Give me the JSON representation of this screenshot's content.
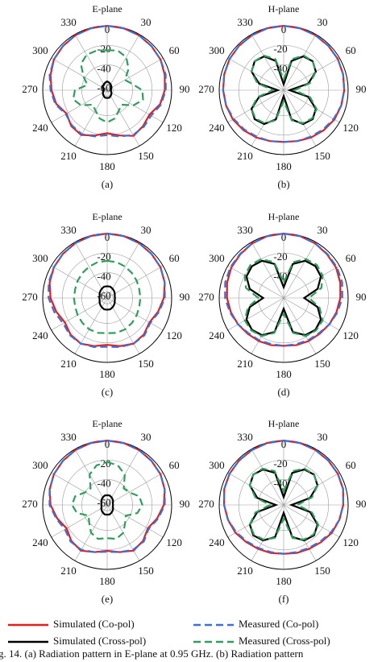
{
  "chart_data": [
    {
      "type": "polar",
      "title": "E-plane",
      "caption": "(a)",
      "theta": [
        0,
        15,
        30,
        45,
        60,
        75,
        90,
        105,
        120,
        135,
        150,
        165,
        180,
        195,
        210,
        225,
        240,
        255,
        270,
        285,
        300,
        315,
        330,
        345
      ],
      "thetaticks": [
        0,
        30,
        60,
        90,
        120,
        150,
        180,
        210,
        240,
        270,
        300,
        330
      ],
      "rlim": [
        -66,
        0
      ],
      "rticks": [
        0,
        -20,
        -40,
        -60
      ],
      "grid": true,
      "series": [
        {
          "name": "Simulated (Co-pol)",
          "color": "#e41e1e",
          "dash": "solid",
          "values": [
            0,
            -0.3,
            -1,
            -2,
            -3,
            -5,
            -7,
            -10,
            -16,
            -14,
            -12,
            -18,
            -22,
            -18,
            -13,
            -14,
            -18,
            -12,
            -9,
            -6,
            -3,
            -2,
            -1,
            -0.3
          ]
        },
        {
          "name": "Measured (Co-pol)",
          "color": "#3d6fd6",
          "dash": "dashed",
          "values": [
            0,
            -0.5,
            -1,
            -2,
            -3,
            -4,
            -6,
            -9,
            -14,
            -13,
            -13,
            -17,
            -20,
            -17,
            -14,
            -15,
            -17,
            -11,
            -8,
            -5,
            -3,
            -2,
            -1,
            -0.5
          ]
        },
        {
          "name": "Simulated (Cross-pol)",
          "color": "#000000",
          "dash": "solid",
          "values": [
            -57,
            -58,
            -59,
            -60,
            -61,
            -62,
            -62,
            -62,
            -61,
            -60,
            -59,
            -58,
            -58,
            -58,
            -59,
            -60,
            -61,
            -62,
            -62,
            -62,
            -61,
            -60,
            -59,
            -58
          ]
        },
        {
          "name": "Measured (Cross-pol)",
          "color": "#2e9e5b",
          "dash": "dashed",
          "values": [
            -25,
            -24,
            -27,
            -35,
            -45,
            -40,
            -30,
            -28,
            -35,
            -45,
            -42,
            -36,
            -33,
            -36,
            -42,
            -45,
            -35,
            -30,
            -33,
            -45,
            -38,
            -28,
            -24,
            -24
          ]
        }
      ]
    },
    {
      "type": "polar",
      "title": "H-plane",
      "caption": "(b)",
      "theta": [
        0,
        15,
        30,
        45,
        60,
        75,
        90,
        105,
        120,
        135,
        150,
        165,
        180,
        195,
        210,
        225,
        240,
        255,
        270,
        285,
        300,
        315,
        330,
        345
      ],
      "thetaticks": [
        0,
        30,
        60,
        90,
        120,
        150,
        180,
        210,
        240,
        270,
        300,
        330
      ],
      "rlim": [
        -66,
        0
      ],
      "rticks": [
        0,
        -20,
        -40
      ],
      "grid": true,
      "series": [
        {
          "name": "Simulated (Co-pol)",
          "color": "#e41e1e",
          "dash": "solid",
          "values": [
            0,
            -0.3,
            -1,
            -1.5,
            -2,
            -3,
            -4,
            -5,
            -6,
            -8,
            -10,
            -12,
            -13,
            -12,
            -10,
            -8,
            -6,
            -5,
            -4,
            -3,
            -2,
            -1.5,
            -1,
            -0.3
          ]
        },
        {
          "name": "Measured (Co-pol)",
          "color": "#3d6fd6",
          "dash": "dashed",
          "values": [
            0,
            -0.5,
            -1,
            -1.5,
            -2,
            -3,
            -4,
            -5,
            -7,
            -9,
            -11,
            -12,
            -13,
            -12,
            -11,
            -9,
            -7,
            -5,
            -4,
            -3,
            -2,
            -1.5,
            -1,
            -0.5
          ]
        },
        {
          "name": "Simulated (Cross-pol)",
          "color": "#000000",
          "dash": "solid",
          "values": [
            -60,
            -35,
            -26,
            -24,
            -28,
            -40,
            -60,
            -40,
            -28,
            -24,
            -26,
            -35,
            -60,
            -35,
            -26,
            -24,
            -28,
            -40,
            -60,
            -40,
            -28,
            -24,
            -26,
            -35
          ]
        },
        {
          "name": "Measured (Cross-pol)",
          "color": "#2e9e5b",
          "dash": "dashed",
          "values": [
            -55,
            -33,
            -25,
            -24,
            -28,
            -38,
            -55,
            -38,
            -27,
            -25,
            -27,
            -34,
            -55,
            -34,
            -27,
            -25,
            -28,
            -38,
            -55,
            -38,
            -28,
            -24,
            -25,
            -33
          ]
        }
      ]
    },
    {
      "type": "polar",
      "title": "E-plane",
      "caption": "(c)",
      "theta": [
        0,
        15,
        30,
        45,
        60,
        75,
        90,
        105,
        120,
        135,
        150,
        165,
        180,
        195,
        210,
        225,
        240,
        255,
        270,
        285,
        300,
        315,
        330,
        345
      ],
      "thetaticks": [
        0,
        30,
        60,
        90,
        120,
        150,
        180,
        210,
        240,
        270,
        300,
        330
      ],
      "rlim": [
        -66,
        0
      ],
      "rticks": [
        0,
        -20,
        -40,
        -60
      ],
      "grid": true,
      "series": [
        {
          "name": "Simulated (Co-pol)",
          "color": "#e41e1e",
          "dash": "solid",
          "values": [
            0,
            -0.3,
            -1,
            -2,
            -3,
            -5,
            -8,
            -12,
            -16,
            -13,
            -12,
            -15,
            -18,
            -15,
            -12,
            -13,
            -16,
            -12,
            -8,
            -5,
            -3,
            -2,
            -1,
            -0.3
          ]
        },
        {
          "name": "Measured (Co-pol)",
          "color": "#3d6fd6",
          "dash": "dashed",
          "values": [
            0,
            -0.5,
            -1,
            -2,
            -3,
            -5,
            -7,
            -11,
            -15,
            -12,
            -12,
            -14,
            -16,
            -14,
            -12,
            -12,
            -14,
            -10,
            -6,
            -4,
            -3,
            -2,
            -1,
            -0.5
          ]
        },
        {
          "name": "Simulated (Cross-pol)",
          "color": "#000000",
          "dash": "solid",
          "values": [
            -54,
            -54,
            -55,
            -56,
            -57,
            -58,
            -58,
            -58,
            -57,
            -56,
            -55,
            -54,
            -54,
            -54,
            -55,
            -56,
            -57,
            -58,
            -58,
            -58,
            -57,
            -56,
            -55,
            -54
          ]
        },
        {
          "name": "Measured (Cross-pol)",
          "color": "#2e9e5b",
          "dash": "dashed",
          "values": [
            -28,
            -28,
            -29,
            -30,
            -31,
            -32,
            -32,
            -32,
            -31,
            -30,
            -29,
            -29,
            -30,
            -29,
            -29,
            -30,
            -31,
            -32,
            -32,
            -32,
            -31,
            -30,
            -29,
            -28
          ]
        }
      ]
    },
    {
      "type": "polar",
      "title": "H-plane",
      "caption": "(d)",
      "theta": [
        0,
        15,
        30,
        45,
        60,
        75,
        90,
        105,
        120,
        135,
        150,
        165,
        180,
        195,
        210,
        225,
        240,
        255,
        270,
        285,
        300,
        315,
        330,
        345
      ],
      "thetaticks": [
        0,
        30,
        60,
        90,
        120,
        150,
        180,
        210,
        240,
        270,
        300,
        330
      ],
      "rlim": [
        -66,
        0
      ],
      "rticks": [
        0,
        -20,
        -40
      ],
      "grid": true,
      "series": [
        {
          "name": "Simulated (Co-pol)",
          "color": "#e41e1e",
          "dash": "solid",
          "values": [
            0,
            -0.5,
            -1.5,
            -3,
            -4,
            -6,
            -8,
            -10,
            -12,
            -14,
            -15,
            -16,
            -17,
            -16,
            -15,
            -14,
            -12,
            -10,
            -8,
            -6,
            -4,
            -3,
            -1.5,
            -0.5
          ]
        },
        {
          "name": "Measured (Co-pol)",
          "color": "#3d6fd6",
          "dash": "dashed",
          "values": [
            0,
            -0.5,
            -1.5,
            -2.5,
            -3,
            -4,
            -6,
            -9,
            -12,
            -15,
            -16,
            -17,
            -17,
            -17,
            -16,
            -15,
            -12,
            -9,
            -6,
            -4,
            -3,
            -2.5,
            -1.5,
            -0.5
          ]
        },
        {
          "name": "Simulated (Cross-pol)",
          "color": "#000000",
          "dash": "solid",
          "values": [
            -55,
            -30,
            -22,
            -20,
            -22,
            -30,
            -45,
            -30,
            -22,
            -20,
            -22,
            -30,
            -55,
            -30,
            -22,
            -20,
            -22,
            -30,
            -45,
            -30,
            -22,
            -20,
            -22,
            -30
          ]
        },
        {
          "name": "Measured (Cross-pol)",
          "color": "#2e9e5b",
          "dash": "dashed",
          "values": [
            -50,
            -28,
            -20,
            -18,
            -20,
            -26,
            -40,
            -28,
            -20,
            -19,
            -21,
            -29,
            -50,
            -29,
            -21,
            -19,
            -20,
            -28,
            -40,
            -26,
            -20,
            -18,
            -20,
            -28
          ]
        }
      ]
    },
    {
      "type": "polar",
      "title": "E-plane",
      "caption": "(e)",
      "theta": [
        0,
        15,
        30,
        45,
        60,
        75,
        90,
        105,
        120,
        135,
        150,
        165,
        180,
        195,
        210,
        225,
        240,
        255,
        270,
        285,
        300,
        315,
        330,
        345
      ],
      "thetaticks": [
        0,
        30,
        60,
        90,
        120,
        150,
        180,
        210,
        240,
        270,
        300,
        330
      ],
      "rlim": [
        -66,
        0
      ],
      "rticks": [
        0,
        -20,
        -40,
        -60
      ],
      "grid": true,
      "series": [
        {
          "name": "Simulated (Co-pol)",
          "color": "#e41e1e",
          "dash": "solid",
          "values": [
            0,
            -0.3,
            -1,
            -2,
            -3,
            -5,
            -8,
            -13,
            -18,
            -14,
            -12,
            -16,
            -19,
            -16,
            -12,
            -14,
            -18,
            -13,
            -8,
            -5,
            -3,
            -2,
            -1,
            -0.3
          ]
        },
        {
          "name": "Measured (Co-pol)",
          "color": "#3d6fd6",
          "dash": "dashed",
          "values": [
            0,
            -0.5,
            -1,
            -2,
            -3,
            -5,
            -7,
            -12,
            -17,
            -13,
            -13,
            -16,
            -18,
            -16,
            -13,
            -13,
            -16,
            -12,
            -7,
            -5,
            -3,
            -2,
            -1,
            -0.5
          ]
        },
        {
          "name": "Simulated (Cross-pol)",
          "color": "#000000",
          "dash": "solid",
          "values": [
            -56,
            -56,
            -57,
            -58,
            -59,
            -60,
            -60,
            -60,
            -59,
            -58,
            -57,
            -56,
            -56,
            -56,
            -57,
            -58,
            -59,
            -60,
            -60,
            -60,
            -59,
            -58,
            -57,
            -56
          ]
        },
        {
          "name": "Measured (Cross-pol)",
          "color": "#2e9e5b",
          "dash": "dashed",
          "values": [
            -22,
            -24,
            -30,
            -42,
            -40,
            -32,
            -30,
            -34,
            -44,
            -40,
            -33,
            -30,
            -32,
            -30,
            -33,
            -40,
            -44,
            -34,
            -30,
            -32,
            -40,
            -42,
            -30,
            -24
          ]
        }
      ]
    },
    {
      "type": "polar",
      "title": "H-plane",
      "caption": "(f)",
      "theta": [
        0,
        15,
        30,
        45,
        60,
        75,
        90,
        105,
        120,
        135,
        150,
        165,
        180,
        195,
        210,
        225,
        240,
        255,
        270,
        285,
        300,
        315,
        330,
        345
      ],
      "thetaticks": [
        0,
        30,
        60,
        90,
        120,
        150,
        180,
        210,
        240,
        270,
        300,
        330
      ],
      "rlim": [
        -66,
        0
      ],
      "rticks": [
        0,
        -20,
        -40
      ],
      "grid": true,
      "series": [
        {
          "name": "Simulated (Co-pol)",
          "color": "#e41e1e",
          "dash": "solid",
          "values": [
            0,
            -0.3,
            -1,
            -1.5,
            -2,
            -3,
            -5,
            -7,
            -9,
            -12,
            -14,
            -15,
            -16,
            -15,
            -14,
            -12,
            -9,
            -7,
            -5,
            -3,
            -2,
            -1.5,
            -1,
            -0.3
          ]
        },
        {
          "name": "Measured (Co-pol)",
          "color": "#3d6fd6",
          "dash": "dashed",
          "values": [
            0,
            -0.5,
            -1,
            -1.5,
            -2,
            -3,
            -5,
            -7,
            -10,
            -13,
            -15,
            -16,
            -16,
            -16,
            -15,
            -13,
            -10,
            -7,
            -5,
            -3,
            -2,
            -1.5,
            -1,
            -0.5
          ]
        },
        {
          "name": "Simulated (Cross-pol)",
          "color": "#000000",
          "dash": "solid",
          "values": [
            -58,
            -32,
            -24,
            -22,
            -26,
            -38,
            -58,
            -38,
            -26,
            -22,
            -24,
            -32,
            -58,
            -32,
            -24,
            -22,
            -26,
            -38,
            -58,
            -38,
            -26,
            -22,
            -24,
            -32
          ]
        },
        {
          "name": "Measured (Cross-pol)",
          "color": "#2e9e5b",
          "dash": "dashed",
          "values": [
            -52,
            -30,
            -23,
            -22,
            -26,
            -36,
            -52,
            -36,
            -25,
            -23,
            -25,
            -31,
            -52,
            -31,
            -25,
            -23,
            -26,
            -36,
            -52,
            -36,
            -26,
            -22,
            -23,
            -30
          ]
        }
      ]
    }
  ],
  "figure_caption": "g. 14.  (a) Radiation pattern in E-plane at 0.95 GHz. (b) Radiation pattern"
}
